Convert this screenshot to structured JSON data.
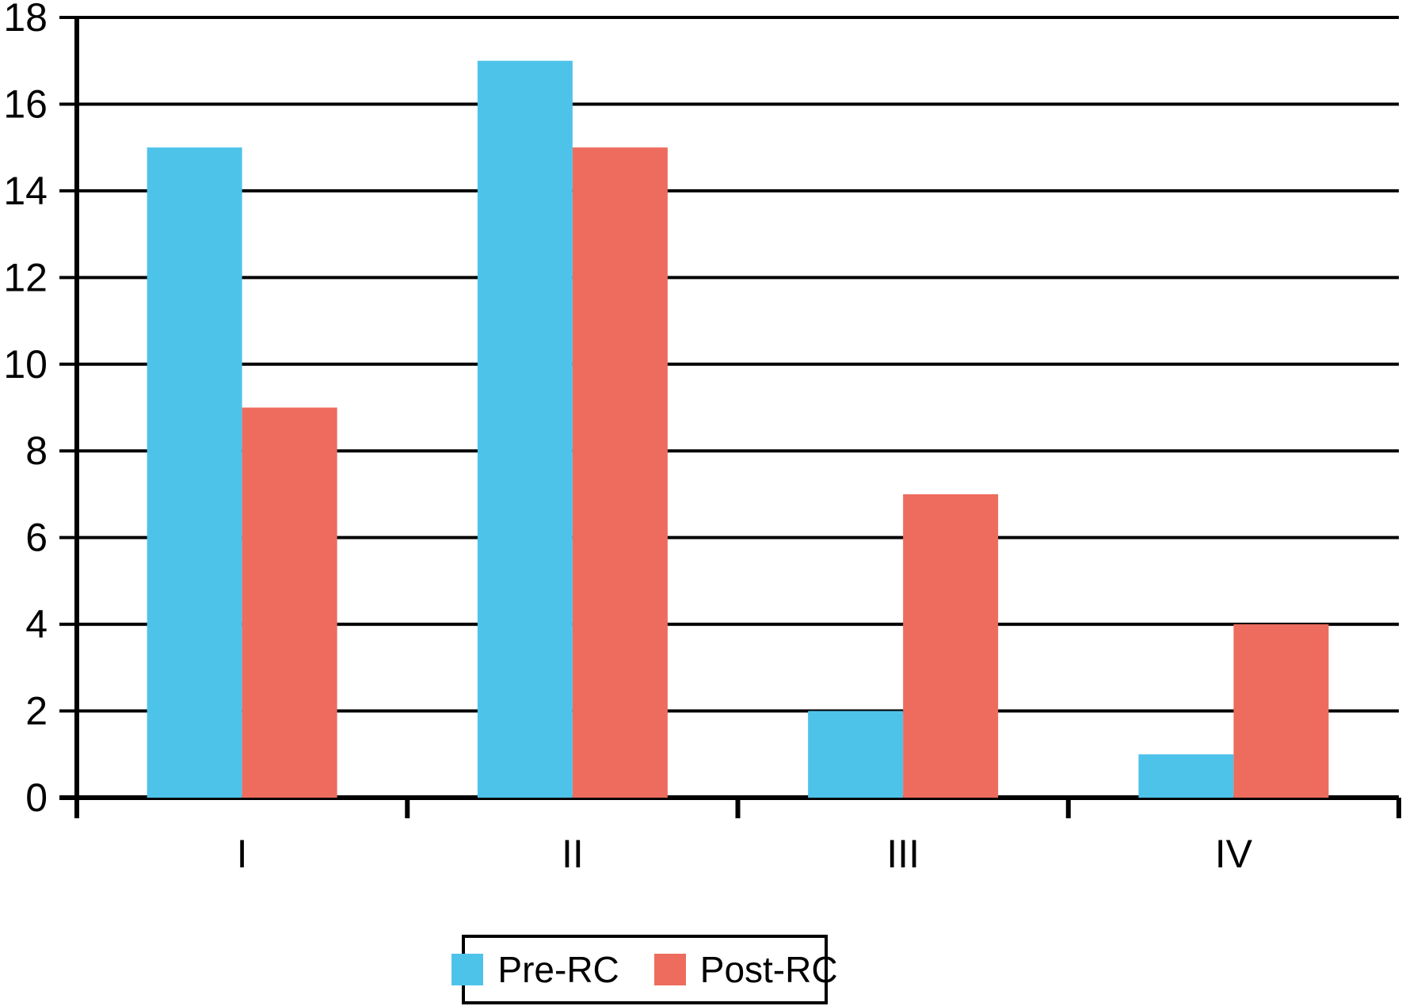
{
  "chart_data": {
    "type": "bar",
    "categories": [
      "I",
      "II",
      "III",
      "IV"
    ],
    "series": [
      {
        "name": "Pre-RC",
        "color": "#4EC3EA",
        "values": [
          15,
          17,
          2,
          1
        ]
      },
      {
        "name": "Post-RC",
        "color": "#ED6C5D",
        "values": [
          9,
          15,
          7,
          4
        ]
      }
    ],
    "title": "",
    "xlabel": "",
    "ylabel": "",
    "ylim": [
      0,
      18
    ],
    "ytick_step": 2,
    "yticks": [
      0,
      2,
      4,
      6,
      8,
      10,
      12,
      14,
      16,
      18
    ],
    "grid": "horizontal",
    "legend_position": "bottom",
    "axis_color": "#000000",
    "background_color": "#ffffff"
  }
}
